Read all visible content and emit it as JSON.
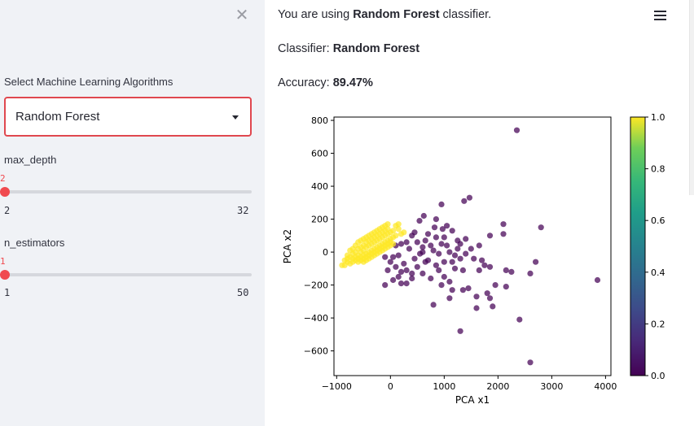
{
  "sidebar": {
    "close_glyph": "✕",
    "algo_label": "Select Machine Learning Algorithms",
    "algo_selected": "Random Forest",
    "sliders": [
      {
        "label": "max_depth",
        "current": "2",
        "min": "2",
        "max": "32",
        "fraction": 0.0
      },
      {
        "label": "n_estimators",
        "current": "1",
        "min": "1",
        "max": "50",
        "fraction": 0.0
      }
    ]
  },
  "main": {
    "line1_prefix": "You are using ",
    "line1_bold": "Random Forest",
    "line1_suffix": " classifier.",
    "line2_prefix": "Classifier: ",
    "line2_bold": "Random Forest",
    "line3_prefix": "Accuracy: ",
    "line3_bold": "89.47%"
  },
  "menu": {
    "icon": "hamburger-menu-icon"
  },
  "colors": {
    "accent": "#f04a4f",
    "class0": "#440154",
    "class1": "#fde725"
  },
  "chart_data": {
    "type": "scatter",
    "xlabel": "PCA x1",
    "ylabel": "PCA x2",
    "xlim": [
      -1050,
      4100
    ],
    "ylim": [
      -750,
      820
    ],
    "xticks": [
      -1000,
      0,
      1000,
      2000,
      3000,
      4000
    ],
    "xtick_labels": [
      "−1000",
      "0",
      "1000",
      "2000",
      "3000",
      "4000"
    ],
    "yticks": [
      -600,
      -400,
      -200,
      0,
      200,
      400,
      600,
      800
    ],
    "ytick_labels": [
      "−600",
      "−400",
      "−200",
      "0",
      "200",
      "400",
      "600",
      "800"
    ],
    "colorbar": {
      "min": 0.0,
      "max": 1.0,
      "ticks": [
        "0.0",
        "0.2",
        "0.4",
        "0.6",
        "0.8",
        "1.0"
      ],
      "colormap": "viridis"
    },
    "series": [
      {
        "class": 0,
        "color": "#440154",
        "points": [
          [
            2350,
            740
          ],
          [
            1470,
            330
          ],
          [
            1370,
            310
          ],
          [
            950,
            290
          ],
          [
            620,
            220
          ],
          [
            540,
            190
          ],
          [
            850,
            200
          ],
          [
            820,
            150
          ],
          [
            970,
            140
          ],
          [
            1150,
            130
          ],
          [
            1050,
            160
          ],
          [
            2100,
            170
          ],
          [
            2800,
            150
          ],
          [
            1850,
            100
          ],
          [
            2100,
            110
          ],
          [
            1400,
            80
          ],
          [
            1250,
            70
          ],
          [
            1650,
            40
          ],
          [
            1500,
            20
          ],
          [
            1000,
            90
          ],
          [
            700,
            110
          ],
          [
            400,
            100
          ],
          [
            300,
            60
          ],
          [
            200,
            50
          ],
          [
            100,
            40
          ],
          [
            500,
            60
          ],
          [
            600,
            30
          ],
          [
            800,
            10
          ],
          [
            900,
            -10
          ],
          [
            1100,
            0
          ],
          [
            1200,
            -20
          ],
          [
            1300,
            -40
          ],
          [
            1400,
            -10
          ],
          [
            1700,
            -50
          ],
          [
            1750,
            -80
          ],
          [
            1650,
            -110
          ],
          [
            1850,
            -90
          ],
          [
            2150,
            -110
          ],
          [
            2250,
            -120
          ],
          [
            2700,
            -60
          ],
          [
            2600,
            -130
          ],
          [
            3850,
            -170
          ],
          [
            2150,
            -210
          ],
          [
            1950,
            -200
          ],
          [
            1800,
            -250
          ],
          [
            1450,
            -220
          ],
          [
            1350,
            -230
          ],
          [
            1600,
            -270
          ],
          [
            1850,
            -280
          ],
          [
            1600,
            -340
          ],
          [
            1900,
            -330
          ],
          [
            800,
            -320
          ],
          [
            1100,
            -280
          ],
          [
            2400,
            -410
          ],
          [
            1300,
            -480
          ],
          [
            2600,
            -670
          ],
          [
            300,
            -190
          ],
          [
            -100,
            -200
          ],
          [
            50,
            -170
          ],
          [
            150,
            -150
          ],
          [
            200,
            -190
          ],
          [
            400,
            -160
          ],
          [
            600,
            -130
          ],
          [
            750,
            -160
          ],
          [
            900,
            -110
          ],
          [
            1000,
            -150
          ],
          [
            1100,
            -180
          ],
          [
            1200,
            -100
          ],
          [
            1000,
            -60
          ],
          [
            700,
            -50
          ],
          [
            500,
            -90
          ],
          [
            300,
            -110
          ],
          [
            100,
            -90
          ],
          [
            0,
            -60
          ],
          [
            -50,
            -110
          ],
          [
            250,
            -70
          ],
          [
            450,
            -40
          ],
          [
            650,
            -60
          ],
          [
            850,
            -80
          ],
          [
            1150,
            -60
          ],
          [
            350,
            20
          ],
          [
            550,
            -10
          ],
          [
            750,
            40
          ],
          [
            950,
            50
          ],
          [
            150,
            -20
          ],
          [
            50,
            -30
          ],
          [
            -100,
            -30
          ],
          [
            450,
            120
          ],
          [
            650,
            70
          ],
          [
            850,
            90
          ],
          [
            1050,
            40
          ],
          [
            1250,
            20
          ],
          [
            1350,
            -110
          ],
          [
            1550,
            -40
          ],
          [
            400,
            -130
          ],
          [
            200,
            -120
          ],
          [
            600,
            0
          ],
          [
            1300,
            50
          ],
          [
            1150,
            -230
          ],
          [
            950,
            -200
          ]
        ]
      },
      {
        "class": 1,
        "color": "#fde725",
        "points": [
          [
            -850,
            -80
          ],
          [
            -800,
            -60
          ],
          [
            -750,
            -70
          ],
          [
            -700,
            -40
          ],
          [
            -650,
            -30
          ],
          [
            -600,
            -20
          ],
          [
            -550,
            0
          ],
          [
            -500,
            10
          ],
          [
            -450,
            30
          ],
          [
            -400,
            40
          ],
          [
            -350,
            50
          ],
          [
            -300,
            60
          ],
          [
            -250,
            70
          ],
          [
            -200,
            80
          ],
          [
            -150,
            90
          ],
          [
            -100,
            100
          ],
          [
            -50,
            110
          ],
          [
            0,
            120
          ],
          [
            50,
            130
          ],
          [
            150,
            140
          ],
          [
            -800,
            -40
          ],
          [
            -750,
            -30
          ],
          [
            -700,
            -10
          ],
          [
            -650,
            0
          ],
          [
            -600,
            20
          ],
          [
            -550,
            30
          ],
          [
            -500,
            40
          ],
          [
            -450,
            60
          ],
          [
            -400,
            70
          ],
          [
            -350,
            80
          ],
          [
            -300,
            90
          ],
          [
            -250,
            100
          ],
          [
            -200,
            110
          ],
          [
            -150,
            120
          ],
          [
            -100,
            130
          ],
          [
            -50,
            140
          ],
          [
            -700,
            -60
          ],
          [
            -650,
            -50
          ],
          [
            -600,
            -40
          ],
          [
            -550,
            -30
          ],
          [
            -500,
            -20
          ],
          [
            -450,
            -10
          ],
          [
            -400,
            0
          ],
          [
            -350,
            10
          ],
          [
            -300,
            20
          ],
          [
            -250,
            30
          ],
          [
            -200,
            40
          ],
          [
            -150,
            50
          ],
          [
            -100,
            60
          ],
          [
            -50,
            70
          ],
          [
            0,
            80
          ],
          [
            50,
            90
          ],
          [
            100,
            100
          ],
          [
            200,
            110
          ],
          [
            250,
            120
          ],
          [
            -600,
            -60
          ],
          [
            -550,
            -50
          ],
          [
            -500,
            -40
          ],
          [
            -450,
            -30
          ],
          [
            -400,
            -20
          ],
          [
            -350,
            -10
          ],
          [
            -300,
            0
          ],
          [
            -250,
            10
          ],
          [
            -200,
            20
          ],
          [
            -150,
            30
          ],
          [
            -100,
            40
          ],
          [
            -50,
            50
          ],
          [
            0,
            60
          ],
          [
            -900,
            -80
          ],
          [
            -850,
            -50
          ],
          [
            -800,
            -20
          ],
          [
            -750,
            10
          ],
          [
            -700,
            20
          ],
          [
            -650,
            40
          ],
          [
            -600,
            60
          ],
          [
            -550,
            70
          ],
          [
            -500,
            80
          ],
          [
            -450,
            90
          ],
          [
            -400,
            100
          ],
          [
            -350,
            110
          ],
          [
            -300,
            120
          ],
          [
            -250,
            130
          ],
          [
            -200,
            140
          ],
          [
            -150,
            150
          ],
          [
            -100,
            160
          ],
          [
            -50,
            170
          ],
          [
            100,
            160
          ],
          [
            150,
            170
          ],
          [
            -500,
            -60
          ],
          [
            -450,
            -50
          ],
          [
            -400,
            -40
          ],
          [
            -350,
            -30
          ],
          [
            -300,
            -20
          ],
          [
            -250,
            -10
          ],
          [
            -200,
            0
          ],
          [
            -150,
            10
          ],
          [
            -100,
            20
          ],
          [
            -50,
            30
          ],
          [
            0,
            40
          ],
          [
            50,
            50
          ]
        ]
      }
    ]
  }
}
